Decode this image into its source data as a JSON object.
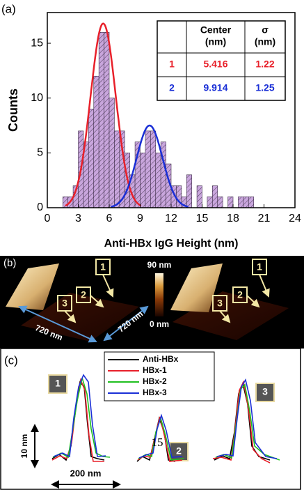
{
  "chart_data": {
    "type": "histogram",
    "panel_label": "(a)",
    "x_label": "Anti-HBx IgG Height (nm)",
    "y_label": "Counts",
    "bins": [
      1.5,
      2,
      2.5,
      3,
      3.5,
      4,
      4.5,
      5,
      5.5,
      6,
      6.5,
      7,
      7.5,
      8,
      8.5,
      9,
      9.5,
      10,
      10.5,
      11,
      11.5,
      12,
      12.5,
      13,
      13.5,
      14,
      14.5,
      15,
      15.5,
      16,
      16.5,
      17,
      17.5,
      18,
      18.5,
      19,
      19.5,
      20
    ],
    "values": [
      1,
      1,
      2,
      7,
      6,
      9,
      12,
      16,
      16,
      10,
      7,
      7,
      5,
      3,
      6,
      5,
      7,
      7,
      5,
      6,
      4,
      2,
      2,
      1,
      3,
      0,
      2,
      0,
      1,
      2,
      1,
      0,
      1,
      0,
      1,
      1,
      1
    ],
    "color": "#c9a6dd",
    "xlim": [
      0,
      24
    ],
    "xticks": [
      0,
      3,
      6,
      9,
      12,
      15,
      18,
      21,
      24
    ],
    "ylim": [
      0,
      17.8
    ],
    "yticks": [
      0,
      5,
      10,
      15
    ],
    "fits": [
      {
        "label": "1",
        "center": 5.416,
        "sigma": 1.22,
        "peak": 16.8,
        "color": "#e8202a"
      },
      {
        "label": "2",
        "center": 9.914,
        "sigma": 1.25,
        "peak": 7.5,
        "color": "#1a2fd6"
      }
    ],
    "table_headers": [
      [
        "Center",
        "(nm)"
      ],
      [
        "σ",
        "(nm)"
      ]
    ]
  },
  "afm_panel": {
    "panel_label": "(b)",
    "scale_max": "90 nm",
    "scale_min": "0 nm",
    "size_left": "720 nm",
    "size_right": "720 nm",
    "markers": [
      "1",
      "2",
      "3"
    ]
  },
  "profile_panel": {
    "panel_label": "(c)",
    "legend": [
      "Anti-HBx",
      "HBx-1",
      "HBx-2",
      "HBx-3"
    ],
    "markers": [
      "1",
      "2",
      "3"
    ],
    "vertical_scale": "10 nm",
    "horizontal_scale": "200 nm",
    "page_number": "15"
  }
}
